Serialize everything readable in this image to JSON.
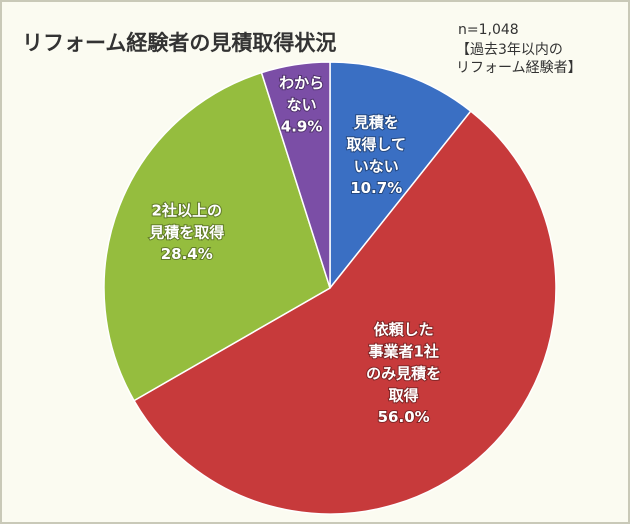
{
  "chart_data": {
    "type": "pie",
    "title": "リフォーム経験者の見積取得状況",
    "annotations": [
      "n=1,048",
      "【過去3年以内の\nリフォーム経験者】"
    ],
    "categories": [
      "見積を\n取得して\nいない",
      "依頼した\n事業者1社\nのみ見積を\n取得",
      "2社以上の\n見積を取得",
      "わから\nない"
    ],
    "values": [
      10.7,
      56.0,
      28.4,
      4.9
    ],
    "value_labels": [
      "10.7%",
      "56.0%",
      "28.4%",
      "4.9%"
    ],
    "colors": [
      "#3a6fc3",
      "#c73a3b",
      "#95bd3e",
      "#7b4ea6"
    ],
    "start_angle": 0,
    "direction": "clockwise"
  }
}
